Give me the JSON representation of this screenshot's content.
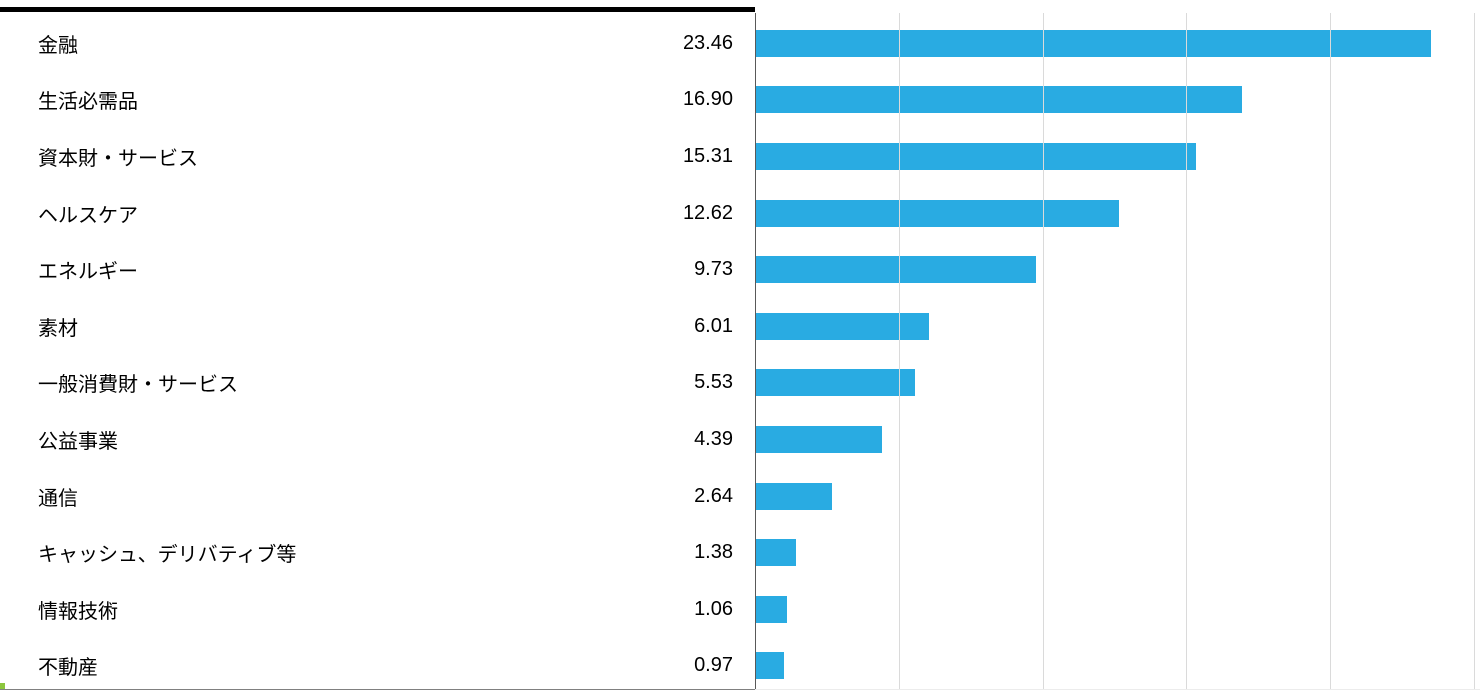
{
  "chart_data": {
    "type": "bar",
    "orientation": "horizontal",
    "title": "",
    "xlabel": "",
    "ylabel": "",
    "categories": [
      "金融",
      "生活必需品",
      "資本財・サービス",
      "ヘルスケア",
      "エネルギー",
      "素材",
      "一般消費財・サービス",
      "公益事業",
      "通信",
      "キャッシュ、デリバティブ等",
      "情報技術",
      "不動産"
    ],
    "values": [
      23.46,
      16.9,
      15.31,
      12.62,
      9.73,
      6.01,
      5.53,
      4.39,
      2.64,
      1.38,
      1.06,
      0.97
    ],
    "value_labels": [
      "23.46",
      "16.90",
      "15.31",
      "12.62",
      "9.73",
      "6.01",
      "5.53",
      "4.39",
      "2.64",
      "1.38",
      "1.06",
      "0.97"
    ],
    "xlim": [
      0,
      25
    ],
    "gridlines_x": [
      5,
      10,
      15,
      20,
      25
    ],
    "grid": true,
    "legend": false,
    "bar_color": "#29ABE2",
    "gridline_color": "#DADADA",
    "axis_line_color": "#595959"
  },
  "decorations": {
    "top_border_color": "#000000",
    "bottom_border_color": "#808080",
    "corner_mark_color": "#8CC63E"
  }
}
